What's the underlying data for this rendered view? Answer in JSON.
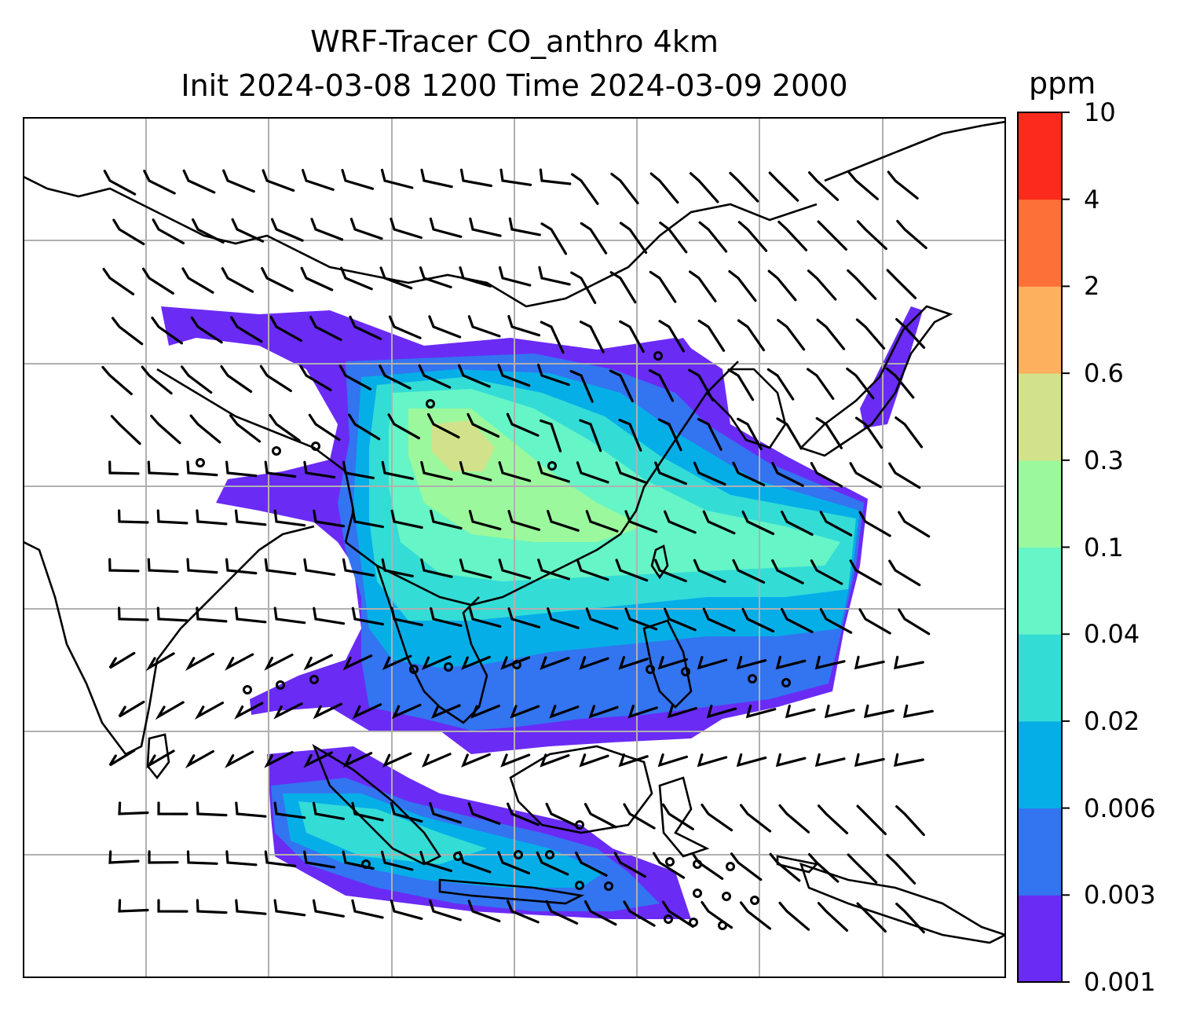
{
  "title": {
    "line1": "WRF-Tracer CO_anthro 4km",
    "line2": "Init 2024-03-08 1200 Time 2024-03-09 2000"
  },
  "colorbar": {
    "unit": "ppm",
    "ticks": [
      "10",
      "4",
      "2",
      "0.6",
      "0.3",
      "0.1",
      "0.04",
      "0.02",
      "0.006",
      "0.003",
      "0.001"
    ],
    "colors": [
      "#2b2ff0",
      "#6a2bf5",
      "#3374f0",
      "#06aee8",
      "#34dcd6",
      "#66f5c6",
      "#9cf89c",
      "#d2e28a",
      "#fdb05e",
      "#fd7038",
      "#fb2a1c"
    ],
    "color_bins_low_to_high": [
      "0.001-0.003",
      "0.003-0.006",
      "0.006-0.02",
      "0.02-0.04",
      "0.04-0.1",
      "0.1-0.3",
      "0.3-0.6",
      "0.6-2",
      "2-4",
      "4-10"
    ]
  },
  "map": {
    "projection": "lat-lon",
    "gridlines": true,
    "coastlines": true,
    "overlay": "wind barbs",
    "tracer": "CO_anthro"
  }
}
